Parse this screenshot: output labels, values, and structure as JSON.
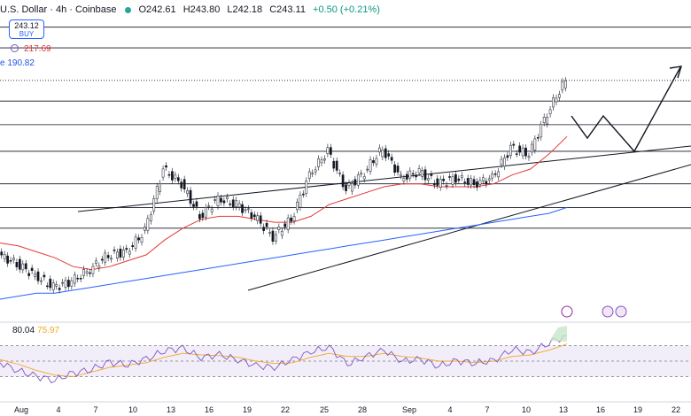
{
  "header": {
    "symbol": "U.S. Dollar · 4h · Coinbase",
    "open": "O242.61",
    "high": "H243.80",
    "low": "L242.18",
    "close": "C243.11",
    "change": "+0.50 (+0.21%)"
  },
  "buy_box": {
    "price": "243.12",
    "label": "BUY"
  },
  "ma_labels": [
    {
      "text": "217.69",
      "color": "#e53935"
    },
    {
      "text": "e 190.82",
      "color": "#1e53e5"
    }
  ],
  "rsi": {
    "value": "80.04",
    "ma_value": "75.97"
  },
  "chart_data": {
    "type": "line",
    "x_ticks": [
      "Aug",
      "4",
      "7",
      "10",
      "13",
      "16",
      "19",
      "22",
      "25",
      "28",
      "Sep",
      "4",
      "7",
      "10",
      "13",
      "16",
      "19",
      "22"
    ],
    "series": [
      {
        "values": [
          186,
          183,
          179,
          175,
          177,
          181,
          186,
          187,
          194,
          215,
          210,
          199,
          205,
          203,
          199,
          192,
          198,
          213,
          221,
          208,
          214,
          222,
          212,
          214,
          210,
          212,
          210,
          212,
          222,
          220,
          234,
          245
        ]
      },
      {
        "values": [
          190,
          189,
          187,
          185,
          182,
          181,
          182,
          184,
          186,
          191,
          195,
          198,
          199,
          199,
          198,
          197,
          197,
          199,
          203,
          205,
          207,
          209,
          210,
          210,
          209,
          209,
          209,
          210,
          213,
          215,
          220,
          226
        ]
      },
      {
        "values": [
          171,
          172,
          173,
          173,
          174,
          175,
          176,
          177,
          178,
          179,
          180,
          181,
          182,
          183,
          184,
          185,
          186,
          187,
          188,
          189,
          190,
          191,
          192,
          193,
          194,
          195,
          196,
          197,
          198,
          199,
          200,
          202
        ]
      }
    ],
    "rsi_values": [
      48,
      38,
      30,
      26,
      34,
      40,
      48,
      46,
      52,
      64,
      66,
      55,
      58,
      52,
      44,
      42,
      52,
      62,
      68,
      46,
      56,
      64,
      50,
      52,
      44,
      50,
      48,
      50,
      66,
      60,
      74,
      82
    ],
    "rsi_ma_values": [
      52,
      46,
      38,
      32,
      30,
      36,
      42,
      45,
      48,
      55,
      60,
      58,
      57,
      55,
      50,
      47,
      48,
      55,
      60,
      56,
      56,
      60,
      56,
      54,
      50,
      50,
      48,
      50,
      56,
      58,
      64,
      72
    ],
    "rsi_range": [
      0,
      100
    ],
    "rsi_levels": [
      70,
      50,
      30
    ],
    "ylim": [
      165,
      265
    ],
    "horizontal_levels": [
      263,
      256,
      245,
      238,
      230,
      221,
      210,
      202,
      195
    ],
    "grid": false
  }
}
